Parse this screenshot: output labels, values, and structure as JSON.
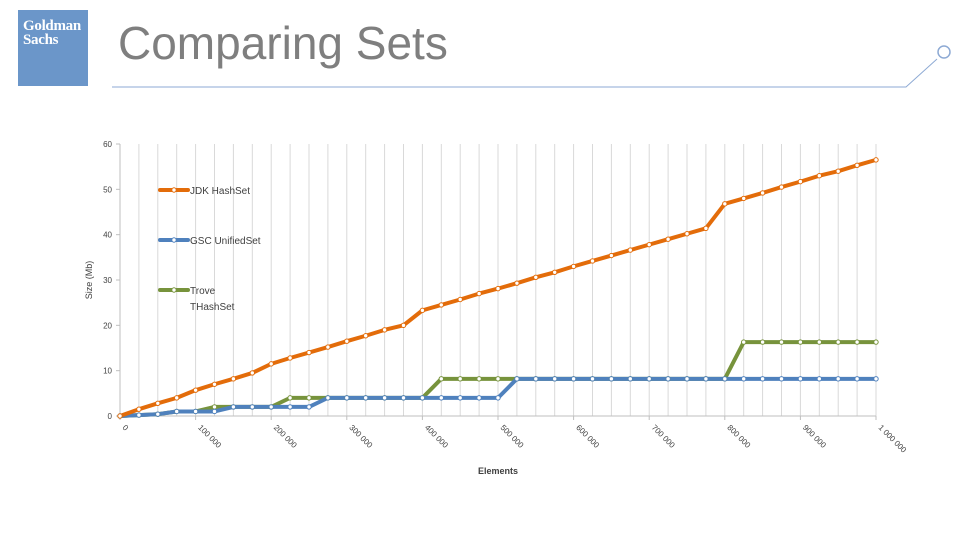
{
  "brand": {
    "logo_text": "Goldman\nSachs",
    "color": "#6b96c9"
  },
  "slide": {
    "title": "Comparing Sets"
  },
  "chart_data": {
    "type": "line",
    "title": "",
    "xlabel": "Elements",
    "ylabel": "Size (Mb)",
    "ylim": [
      0,
      60
    ],
    "yticks": [
      0,
      10,
      20,
      30,
      40,
      50,
      60
    ],
    "xlim": [
      0,
      1000000
    ],
    "xtick_values": [
      0,
      100000,
      200000,
      300000,
      400000,
      500000,
      600000,
      700000,
      800000,
      900000,
      1000000
    ],
    "xtick_labels": [
      "0",
      "100 000",
      "200 000",
      "300 000",
      "400 000",
      "500 000",
      "600 000",
      "700 000",
      "800 000",
      "900 000",
      "1 000 000"
    ],
    "x": [
      0,
      25000,
      50000,
      75000,
      100000,
      125000,
      150000,
      175000,
      200000,
      225000,
      250000,
      275000,
      300000,
      325000,
      350000,
      375000,
      400000,
      425000,
      450000,
      475000,
      500000,
      525000,
      550000,
      575000,
      600000,
      625000,
      650000,
      675000,
      700000,
      725000,
      750000,
      775000,
      800000,
      825000,
      850000,
      875000,
      900000,
      925000,
      950000,
      975000,
      1000000
    ],
    "grid": "vertical",
    "legend_position": "left-inside",
    "series": [
      {
        "name": "JDK HashSet",
        "color": "#e36c0a",
        "values": [
          0,
          1.5,
          2.8,
          4.0,
          5.7,
          7.0,
          8.2,
          9.5,
          11.5,
          12.8,
          14.0,
          15.2,
          16.5,
          17.7,
          19.0,
          20.0,
          23.3,
          24.5,
          25.7,
          27.0,
          28.1,
          29.3,
          30.6,
          31.7,
          33.0,
          34.2,
          35.4,
          36.6,
          37.8,
          39.0,
          40.2,
          41.4,
          46.8,
          48.0,
          49.2,
          50.5,
          51.7,
          53.0,
          54.0,
          55.3,
          56.5
        ]
      },
      {
        "name": "GSC UnifiedSet",
        "color": "#4f81bd",
        "values": [
          0,
          0.2,
          0.4,
          1.0,
          1.0,
          1.0,
          2.0,
          2.0,
          2.0,
          2.0,
          2.0,
          4.0,
          4.0,
          4.0,
          4.0,
          4.0,
          4.0,
          4.0,
          4.0,
          4.0,
          4.0,
          8.2,
          8.2,
          8.2,
          8.2,
          8.2,
          8.2,
          8.2,
          8.2,
          8.2,
          8.2,
          8.2,
          8.2,
          8.2,
          8.2,
          8.2,
          8.2,
          8.2,
          8.2,
          8.2,
          8.2
        ]
      },
      {
        "name": "Trove THashSet",
        "color": "#77933c",
        "values": [
          0,
          0.2,
          0.4,
          1.0,
          1.0,
          2.0,
          2.0,
          2.0,
          2.0,
          4.0,
          4.0,
          4.0,
          4.0,
          4.0,
          4.0,
          4.0,
          4.0,
          8.2,
          8.2,
          8.2,
          8.2,
          8.2,
          8.2,
          8.2,
          8.2,
          8.2,
          8.2,
          8.2,
          8.2,
          8.2,
          8.2,
          8.2,
          8.2,
          16.3,
          16.3,
          16.3,
          16.3,
          16.3,
          16.3,
          16.3,
          16.3
        ]
      }
    ],
    "legend": [
      {
        "lines": [
          "JDK HashSet"
        ],
        "series": 0
      },
      {
        "lines": [
          "GSC UnifiedSet"
        ],
        "series": 1
      },
      {
        "lines": [
          "Trove",
          "THashSet"
        ],
        "series": 2
      }
    ]
  }
}
